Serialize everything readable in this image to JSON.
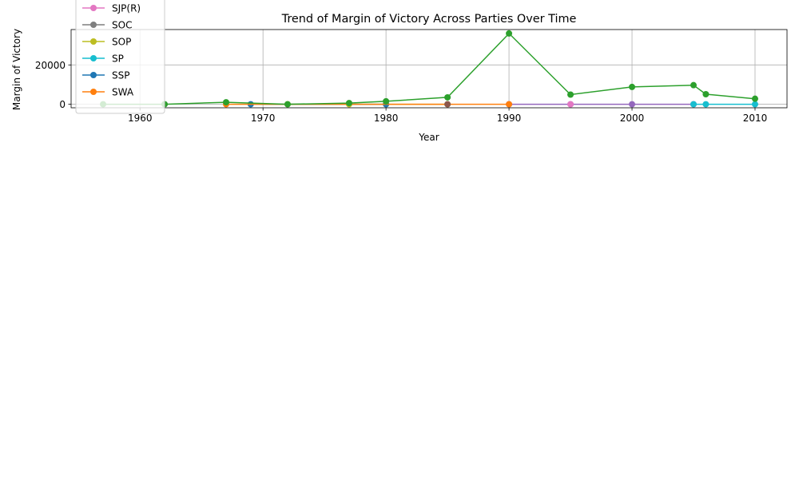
{
  "chart_data": {
    "type": "line",
    "title": "Trend of Margin of Victory Across Parties Over Time",
    "xlabel": "Year",
    "ylabel": "Margin of Victory",
    "xlim": [
      1954.4,
      2012.6
    ],
    "ylim": [
      -1800,
      38000
    ],
    "xticks": [
      1960,
      1970,
      1980,
      1990,
      2000,
      2010
    ],
    "yticks": [
      0,
      20000
    ],
    "grid": true,
    "legend_position": "top-left",
    "series": [
      {
        "name": "",
        "color": "#9467bd",
        "x": [
          1990,
          1995,
          2000,
          2005
        ],
        "y": [
          0,
          0,
          0,
          0
        ]
      },
      {
        "name": "SJP(R)",
        "color": "#e377c2",
        "x": [
          1995
        ],
        "y": [
          0
        ]
      },
      {
        "name": "SOC",
        "color": "#7f7f7f",
        "x": [
          1962
        ],
        "y": [
          0
        ]
      },
      {
        "name": "SOP",
        "color": "#bcbd22",
        "x": [
          1972,
          1977,
          1980,
          1985
        ],
        "y": [
          0,
          0,
          0,
          0
        ]
      },
      {
        "name": "SP",
        "color": "#17becf",
        "x": [
          2005,
          2006,
          2010
        ],
        "y": [
          0,
          0,
          0
        ]
      },
      {
        "name": "SSP",
        "color": "#1f77b4",
        "x": [
          1969,
          1980
        ],
        "y": [
          0,
          0
        ]
      },
      {
        "name": "SWA",
        "color": "#ff7f0e",
        "x": [
          1967,
          1990
        ],
        "y": [
          0,
          0
        ]
      },
      {
        "name": "",
        "color": "#8c564b",
        "x": [
          1985
        ],
        "y": [
          0
        ]
      },
      {
        "name": "",
        "color": "#2ca02c",
        "x": [
          1957,
          1962,
          1967,
          1972,
          1977,
          1980,
          1985,
          1990,
          1995,
          2000,
          2005,
          2006,
          2010
        ],
        "y": [
          0,
          0,
          1000,
          0,
          600,
          1500,
          3500,
          36000,
          4900,
          8800,
          9700,
          5100,
          2800
        ]
      }
    ],
    "legend": [
      {
        "label": "SJP(R)",
        "color": "#e377c2"
      },
      {
        "label": "SOC",
        "color": "#7f7f7f"
      },
      {
        "label": "SOP",
        "color": "#bcbd22"
      },
      {
        "label": "SP",
        "color": "#17becf"
      },
      {
        "label": "SSP",
        "color": "#1f77b4"
      },
      {
        "label": "SWA",
        "color": "#ff7f0e"
      }
    ]
  }
}
